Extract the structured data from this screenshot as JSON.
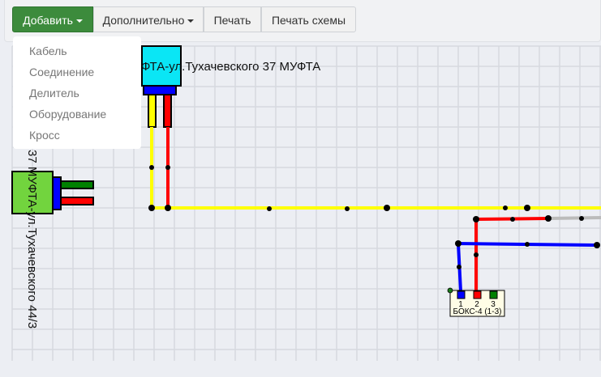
{
  "toolbar": {
    "add": "Добавить",
    "more": "Дополнительно",
    "print": "Печать",
    "print_scheme": "Печать схемы"
  },
  "add_menu": {
    "items": [
      "Кабель",
      "Соединение",
      "Делитель",
      "Оборудование",
      "Кросс"
    ]
  },
  "scheme": {
    "node_top_label": "ФТА-ул.Тухачевского 37 МУФТА",
    "node_left_label": "37 МУФТА-ул.Тухачевского 44/3",
    "box_label": "БОКС-4 (1-3)",
    "box_ports": [
      "1",
      "2",
      "3"
    ],
    "colors": {
      "accent": "#3c8b3c",
      "cyan": "#0ae6f5",
      "green_node": "#72d43e",
      "yellow": "#ffff00",
      "red": "#ff0000",
      "blue": "#0000ff",
      "gray": "#bbbbbb"
    }
  }
}
